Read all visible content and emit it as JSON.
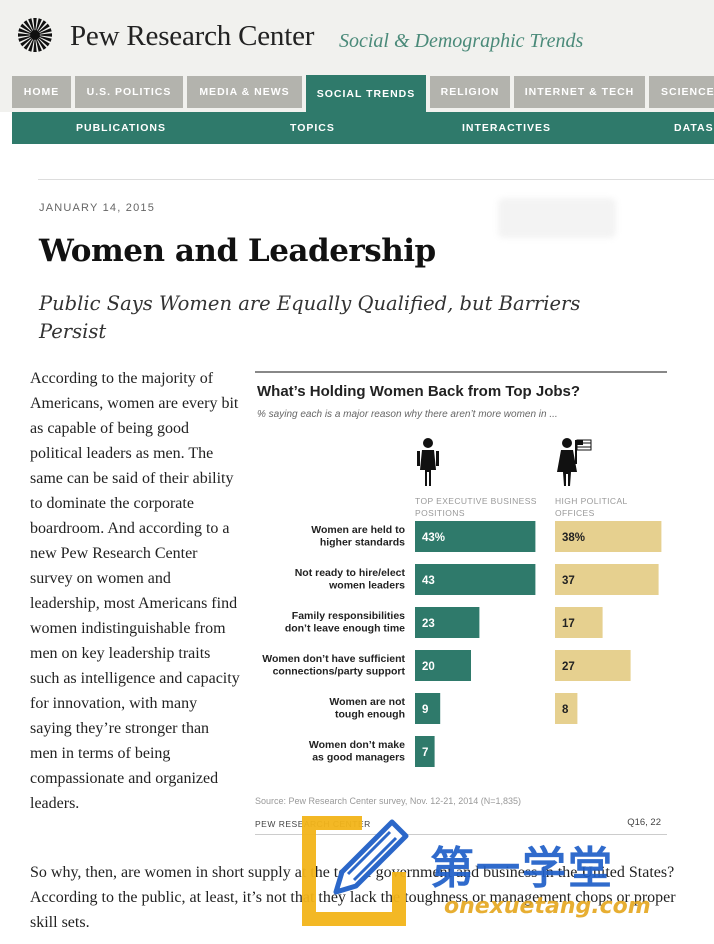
{
  "header": {
    "brand": "Pew Research Center",
    "section": "Social & Demographic Trends"
  },
  "nav": {
    "primary": [
      "HOME",
      "U.S. POLITICS",
      "MEDIA & NEWS",
      "SOCIAL TRENDS",
      "RELIGION",
      "INTERNET & TECH",
      "SCIENCE"
    ],
    "active": "SOCIAL TRENDS",
    "secondary": [
      "PUBLICATIONS",
      "TOPICS",
      "INTERACTIVES",
      "DATAS"
    ]
  },
  "article": {
    "date": "JANUARY 14, 2015",
    "title": "Women and Leadership",
    "subtitle": "Public Says Women are Equally Qualified, but Barriers Persist",
    "paragraph1": "According to the majority of Americans, women are every bit as capable of being good political leaders as men. The same can be said of their ability to dominate the corporate boardroom. And according to a new Pew Research Center survey on women and leadership, most Americans find women indistinguishable from men on key leadership traits such as intelligence and capacity for innovation, with many saying they’re stronger than men in terms of being compassionate and organized leaders.",
    "paragraph2": "So why, then, are women in short supply at the top of government and business in the United States? According to the public, at least, it’s not that they lack the toughness or management chops or proper skill sets."
  },
  "chart_data": {
    "type": "bar",
    "title": "What’s Holding Women Back from Top Jobs?",
    "subtitle": "% saying each is a major reason why there aren’t more women in ...",
    "categories": [
      "Women are held to higher standards",
      "Not ready to hire/elect women leaders",
      "Family responsibilities don’t leave enough time",
      "Women don’t have sufficient connections/party support",
      "Women are not tough enough",
      "Women don’t make as good managers"
    ],
    "category_lines": [
      [
        "Women are held to",
        "higher standards"
      ],
      [
        "Not ready to hire/elect",
        "women leaders"
      ],
      [
        "Family responsibilities",
        "don’t leave enough time"
      ],
      [
        "Women don’t have sufficient",
        "connections/party support"
      ],
      [
        "Women are not",
        "tough enough"
      ],
      [
        "Women don’t make",
        "as good managers"
      ]
    ],
    "series": [
      {
        "name": "TOP EXECUTIVE BUSINESS POSITIONS",
        "name_lines": [
          "TOP EXECUTIVE BUSINESS",
          "POSITIONS"
        ],
        "values": [
          43,
          43,
          23,
          20,
          9,
          7
        ],
        "labels": [
          "43%",
          "43",
          "23",
          "20",
          "9",
          "7"
        ],
        "color": "#2f7a6b",
        "label_color": "#ffffff"
      },
      {
        "name": "HIGH POLITICAL OFFICES",
        "name_lines": [
          "HIGH POLITICAL",
          "OFFICES"
        ],
        "values": [
          38,
          37,
          17,
          27,
          8,
          null
        ],
        "labels": [
          "38%",
          "37",
          "17",
          "27",
          "8",
          ""
        ],
        "color": "#e6d08f",
        "label_color": "#222222"
      }
    ],
    "source": "Source: Pew Research Center survey, Nov. 12-21, 2014 (N=1,835)",
    "footer": "PEW RESEARCH CENTER",
    "question_ref": "Q16, 22"
  },
  "watermark": {
    "chinese": "第一学堂",
    "url": "onexuetang.com"
  },
  "colors": {
    "accent": "#2f7a6b",
    "tab_inactive": "#b3b3ad",
    "political": "#e6d08f"
  }
}
